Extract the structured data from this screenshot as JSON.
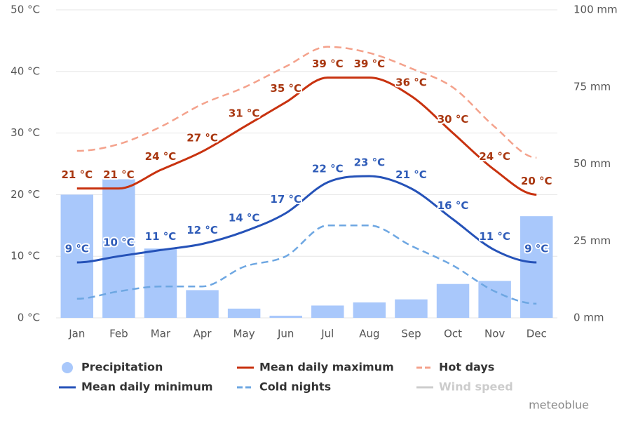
{
  "chart_data": {
    "type": "combo",
    "categories": [
      "Jan",
      "Feb",
      "Mar",
      "Apr",
      "May",
      "Jun",
      "Jul",
      "Aug",
      "Sep",
      "Oct",
      "Nov",
      "Dec"
    ],
    "ylim": [
      0,
      50
    ],
    "yticks": [
      {
        "value": 0,
        "label": "0 °C"
      },
      {
        "value": 10,
        "label": "10 °C"
      },
      {
        "value": 20,
        "label": "20 °C"
      },
      {
        "value": 30,
        "label": "30 °C"
      },
      {
        "value": 40,
        "label": "40 °C"
      },
      {
        "value": 50,
        "label": "50 °C"
      }
    ],
    "y2lim": [
      0,
      100
    ],
    "y2ticks": [
      {
        "value": 0,
        "label": "0 mm"
      },
      {
        "value": 25,
        "label": "25 mm"
      },
      {
        "value": 50,
        "label": "50 mm"
      },
      {
        "value": 75,
        "label": "75 mm"
      },
      {
        "value": 100,
        "label": "100 mm"
      }
    ],
    "grid": true,
    "series": [
      {
        "name": "Precipitation",
        "type": "bar",
        "axis": "y2",
        "color": "#a9c8fb",
        "values": [
          40,
          45,
          22.5,
          9,
          3,
          0.7,
          4,
          5,
          6,
          11,
          12,
          33
        ]
      },
      {
        "name": "Mean daily maximum",
        "type": "line",
        "color": "#c8320f",
        "label_color": "#a8360f",
        "values": [
          21,
          21,
          24,
          27,
          31,
          35,
          39,
          39,
          36,
          30,
          24,
          20
        ],
        "value_labels": [
          "21 °C",
          "21 °C",
          "24 °C",
          "27 °C",
          "31 °C",
          "35 °C",
          "39 °C",
          "39 °C",
          "36 °C",
          "30 °C",
          "24 °C",
          "20 °C"
        ]
      },
      {
        "name": "Hot days",
        "type": "line",
        "dashed": true,
        "color": "#f4a28c",
        "values": [
          27.1,
          28.2,
          31,
          34.7,
          37.4,
          40.8,
          44,
          43,
          40.5,
          37.4,
          31,
          26
        ]
      },
      {
        "name": "Mean daily minimum",
        "type": "line",
        "color": "#2552b8",
        "label_color": "#2f5cb8",
        "values": [
          9,
          10,
          11,
          12,
          14,
          17,
          22,
          23,
          21,
          16,
          11,
          9
        ],
        "value_labels": [
          "9 °C",
          "10 °C",
          "11 °C",
          "12 °C",
          "14 °C",
          "17 °C",
          "22 °C",
          "23 °C",
          "21 °C",
          "16 °C",
          "11 °C",
          "9 °C"
        ]
      },
      {
        "name": "Cold nights",
        "type": "line",
        "dashed": true,
        "color": "#6ea7e2",
        "values": [
          3.1,
          4.3,
          5.1,
          5.1,
          8.3,
          10,
          15,
          15,
          11.7,
          8.5,
          4.3,
          2.3
        ]
      },
      {
        "name": "Wind speed",
        "type": "line",
        "visible": false,
        "color": "#cccccc"
      }
    ],
    "watermark": "meteoblue"
  }
}
